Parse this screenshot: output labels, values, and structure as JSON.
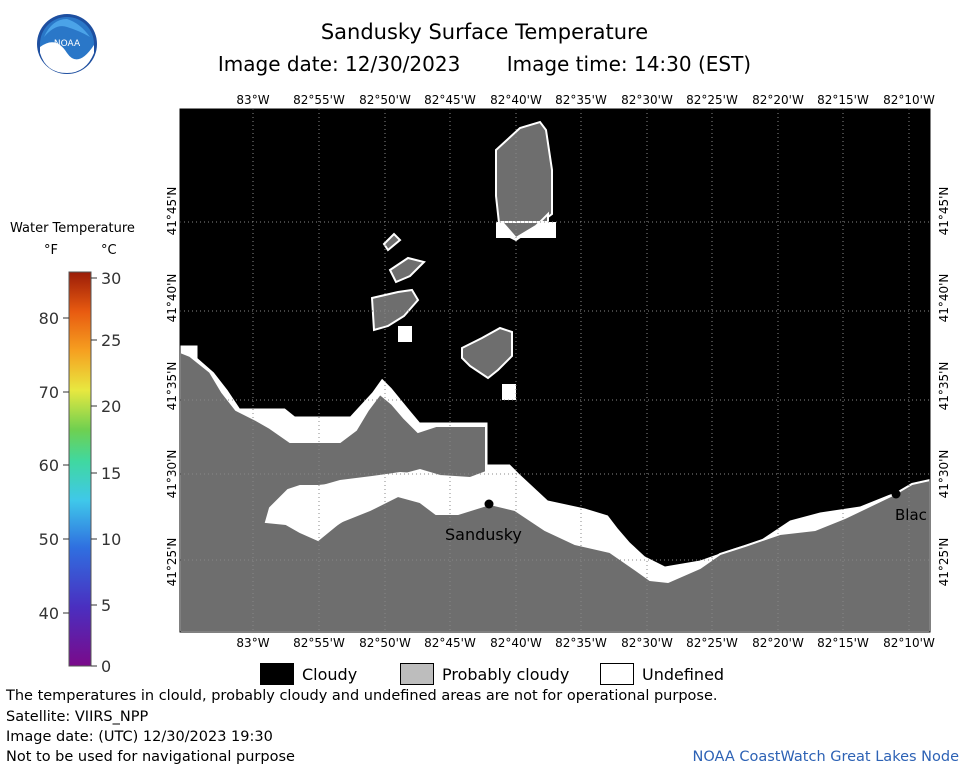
{
  "header": {
    "title": "Sandusky Surface Temperature",
    "image_date": "Image date: 12/30/2023",
    "image_time": "Image time: 14:30 (EST)"
  },
  "logo": {
    "text": "NOAA",
    "icon": "noaa-logo-icon"
  },
  "map": {
    "lon_labels": [
      "83°W",
      "82°55'W",
      "82°50'W",
      "82°45'W",
      "82°40'W",
      "82°35'W",
      "82°30'W",
      "82°25'W",
      "82°20'W",
      "82°15'W",
      "82°10'W"
    ],
    "lat_labels": [
      "41°45'N",
      "41°40'N",
      "41°35'N",
      "41°30'N",
      "41°25'N"
    ],
    "places": [
      {
        "name": "Sandusky"
      },
      {
        "name": "Blac"
      }
    ],
    "colors": {
      "cloudy": "#000000",
      "probably_cloudy": "#6e6e6e",
      "undefined": "#ffffff"
    }
  },
  "colorbar": {
    "title": "Water Temperature",
    "unit_f": "°F",
    "unit_c": "°C",
    "f_ticks": [
      "80",
      "70",
      "60",
      "50",
      "40"
    ],
    "c_ticks": [
      "30",
      "25",
      "20",
      "15",
      "10",
      "5",
      "0"
    ]
  },
  "legend": {
    "cloudy": "Cloudy",
    "probably_cloudy": "Probably cloudy",
    "undefined": "Undefined"
  },
  "footer": {
    "line1": "The temperatures in clould, probably cloudy and undefined areas are not for operational purpose.",
    "line2": "Satellite: VIIRS_NPP",
    "line3": "Image date: (UTC) 12/30/2023  19:30",
    "line4": "Not to be used for navigational purpose",
    "credit": "NOAA CoastWatch Great Lakes Node"
  }
}
